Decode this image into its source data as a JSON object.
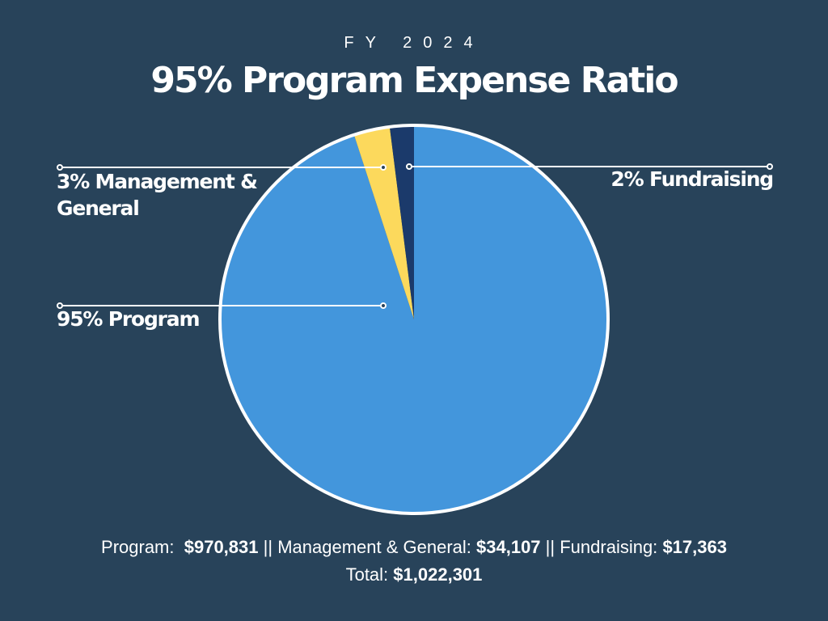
{
  "chart_data": {
    "type": "pie",
    "subtitle": "FY 2024",
    "title": "95% Program Expense Ratio",
    "categories": [
      "Program",
      "Management & General",
      "Fundraising"
    ],
    "values": [
      95,
      3,
      2
    ],
    "value_labels": [
      "95% Program",
      "3% Management & General",
      "2% Fundraising"
    ],
    "colors": [
      "#4396dc",
      "#fcd95c",
      "#1b3a6b"
    ]
  },
  "footer": {
    "items": [
      {
        "label": "Program:",
        "amount": "$970,831"
      },
      {
        "label": "Management & General:",
        "amount": "$34,107"
      },
      {
        "label": "Fundraising:",
        "amount": "$17,363"
      }
    ],
    "separator": "||",
    "total_label": "Total:",
    "total": "$1,022,301"
  }
}
